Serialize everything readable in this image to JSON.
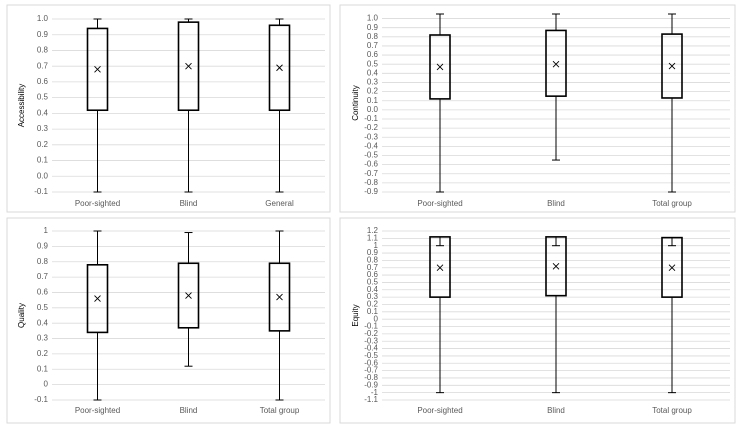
{
  "chart_data": [
    {
      "type": "box",
      "y_label": "Accessibility",
      "categories": [
        "Poor-sighted",
        "Blind",
        "General"
      ],
      "min": [
        -0.1,
        -0.1,
        -0.1
      ],
      "q1": [
        0.42,
        0.42,
        0.42
      ],
      "q3": [
        0.94,
        0.98,
        0.96
      ],
      "max": [
        1.0,
        1.0,
        1.0
      ],
      "mean": [
        0.68,
        0.7,
        0.69
      ],
      "ylim": [
        -0.1,
        1.0
      ],
      "yticks": [
        -0.1,
        {
          "value": 0,
          "label": "0.0"
        },
        0.1,
        0.2,
        0.3,
        0.4,
        0.5,
        0.6,
        0.7,
        0.8,
        0.9,
        {
          "value": 1,
          "label": "1.0"
        }
      ],
      "grid": true
    },
    {
      "type": "box",
      "y_label": "Continuity",
      "categories": [
        "Poor-sighted",
        "Blind",
        "Total group"
      ],
      "min": [
        -0.9,
        -0.55,
        -0.9
      ],
      "q1": [
        0.12,
        0.15,
        0.13
      ],
      "q3": [
        0.82,
        0.87,
        0.83
      ],
      "max": [
        1.05,
        1.05,
        1.05
      ],
      "mean": [
        0.47,
        0.5,
        0.48
      ],
      "ylim": [
        -0.9,
        1.05
      ],
      "yticks": [
        -0.9,
        -0.8,
        -0.7,
        -0.6,
        -0.5,
        -0.4,
        -0.3,
        -0.2,
        -0.1,
        {
          "value": 0,
          "label": "0.0"
        },
        0.1,
        0.2,
        0.3,
        0.4,
        0.5,
        0.6,
        0.7,
        0.8,
        0.9,
        {
          "value": 1,
          "label": "1.0"
        }
      ],
      "grid": true
    },
    {
      "type": "box",
      "y_label": "Quality",
      "categories": [
        "Poor-sighted",
        "Blind",
        "Total group"
      ],
      "min": [
        -0.1,
        0.12,
        -0.1
      ],
      "q1": [
        0.34,
        0.37,
        0.35
      ],
      "q3": [
        0.78,
        0.79,
        0.79
      ],
      "max": [
        1,
        0.99,
        1
      ],
      "mean": [
        0.56,
        0.58,
        0.57
      ],
      "ylim": [
        -0.1,
        1
      ],
      "yticks": [
        -0.1,
        0,
        0.1,
        0.2,
        0.3,
        0.4,
        0.5,
        0.6,
        0.7,
        0.8,
        0.9,
        1
      ],
      "grid": true
    },
    {
      "type": "box",
      "y_label": "Equity",
      "categories": [
        "Poor-sighted",
        "Blind",
        "Total group"
      ],
      "min": [
        -1,
        -1,
        -1
      ],
      "q1": [
        0.3,
        0.32,
        0.3
      ],
      "q3": [
        1.12,
        1.12,
        1.11
      ],
      "max": [
        1,
        1,
        1
      ],
      "mean": [
        0.7,
        0.72,
        0.7
      ],
      "ylim": [
        -1.1,
        1.2
      ],
      "yticks": [
        -1.1,
        -1,
        -0.9,
        -0.8,
        -0.7,
        -0.6,
        -0.5,
        -0.4,
        -0.3,
        -0.2,
        -0.1,
        0,
        0.1,
        0.2,
        0.3,
        0.4,
        0.5,
        0.6,
        0.7,
        0.8,
        0.9,
        1,
        1.1,
        1.2
      ],
      "grid": true
    }
  ]
}
